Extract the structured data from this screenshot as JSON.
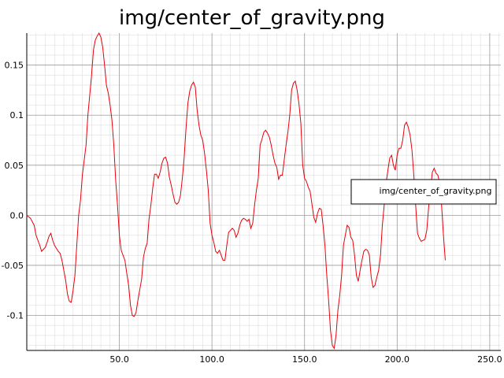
{
  "colors": {
    "series": "#e8000b",
    "grid_major": "#9a9a9a",
    "grid_minor": "#dddddd",
    "axis": "#000000",
    "background": "#ffffff"
  },
  "chart_data": {
    "type": "line",
    "title": "img/center_of_gravity.png",
    "xlabel": "",
    "ylabel": "",
    "xlim": [
      0,
      256
    ],
    "ylim": [
      -0.135,
      0.182
    ],
    "x_ticks": [
      50,
      100,
      150,
      200,
      250
    ],
    "x_tick_labels": [
      "50.0",
      "100.0",
      "150.0",
      "200.0",
      "250.0"
    ],
    "y_ticks": [
      0.15,
      0.1,
      0.05,
      0.0,
      -0.05,
      -0.1
    ],
    "y_tick_labels": [
      "0.15",
      "0.1",
      "0.05",
      "0.0",
      "-0.05",
      "-0.1"
    ],
    "grid": true,
    "legend": "right",
    "series": [
      {
        "name": "img/center_of_gravity.png",
        "points": [
          [
            0,
            0.0
          ],
          [
            2,
            -0.003
          ],
          [
            4,
            -0.01
          ],
          [
            5,
            -0.02
          ],
          [
            7,
            -0.03
          ],
          [
            8,
            -0.036
          ],
          [
            10,
            -0.032
          ],
          [
            11,
            -0.027
          ],
          [
            12,
            -0.021
          ],
          [
            13,
            -0.018
          ],
          [
            14,
            -0.025
          ],
          [
            15,
            -0.03
          ],
          [
            16,
            -0.033
          ],
          [
            17,
            -0.036
          ],
          [
            18,
            -0.038
          ],
          [
            19,
            -0.045
          ],
          [
            20,
            -0.055
          ],
          [
            21,
            -0.065
          ],
          [
            22,
            -0.079
          ],
          [
            23,
            -0.086
          ],
          [
            24,
            -0.087
          ],
          [
            25,
            -0.075
          ],
          [
            26,
            -0.06
          ],
          [
            27,
            -0.03
          ],
          [
            28,
            0.0
          ],
          [
            29,
            0.015
          ],
          [
            30,
            0.04
          ],
          [
            31,
            0.055
          ],
          [
            32,
            0.07
          ],
          [
            33,
            0.1
          ],
          [
            34,
            0.12
          ],
          [
            35,
            0.14
          ],
          [
            36,
            0.165
          ],
          [
            37,
            0.175
          ],
          [
            38,
            0.179
          ],
          [
            39,
            0.182
          ],
          [
            40,
            0.178
          ],
          [
            41,
            0.168
          ],
          [
            42,
            0.15
          ],
          [
            43,
            0.13
          ],
          [
            44,
            0.122
          ],
          [
            45,
            0.11
          ],
          [
            46,
            0.095
          ],
          [
            47,
            0.07
          ],
          [
            48,
            0.035
          ],
          [
            49,
            0.01
          ],
          [
            50,
            -0.02
          ],
          [
            51,
            -0.035
          ],
          [
            53,
            -0.045
          ],
          [
            54,
            -0.058
          ],
          [
            55,
            -0.07
          ],
          [
            56,
            -0.09
          ],
          [
            57,
            -0.1
          ],
          [
            58,
            -0.101
          ],
          [
            59,
            -0.097
          ],
          [
            60,
            -0.085
          ],
          [
            62,
            -0.064
          ],
          [
            63,
            -0.042
          ],
          [
            64,
            -0.033
          ],
          [
            65,
            -0.028
          ],
          [
            66,
            -0.004
          ],
          [
            67,
            0.01
          ],
          [
            68,
            0.027
          ],
          [
            69,
            0.041
          ],
          [
            70,
            0.041
          ],
          [
            71,
            0.037
          ],
          [
            72,
            0.043
          ],
          [
            73,
            0.052
          ],
          [
            74,
            0.057
          ],
          [
            75,
            0.058
          ],
          [
            76,
            0.052
          ],
          [
            77,
            0.038
          ],
          [
            78,
            0.03
          ],
          [
            79,
            0.021
          ],
          [
            80,
            0.013
          ],
          [
            81,
            0.011
          ],
          [
            82,
            0.013
          ],
          [
            83,
            0.02
          ],
          [
            84,
            0.037
          ],
          [
            85,
            0.058
          ],
          [
            86,
            0.087
          ],
          [
            87,
            0.112
          ],
          [
            88,
            0.124
          ],
          [
            89,
            0.13
          ],
          [
            90,
            0.133
          ],
          [
            91,
            0.128
          ],
          [
            92,
            0.105
          ],
          [
            93,
            0.09
          ],
          [
            94,
            0.08
          ],
          [
            95,
            0.075
          ],
          [
            96,
            0.062
          ],
          [
            97,
            0.045
          ],
          [
            98,
            0.025
          ],
          [
            99,
            -0.008
          ],
          [
            100,
            -0.02
          ],
          [
            101,
            -0.027
          ],
          [
            102,
            -0.036
          ],
          [
            103,
            -0.038
          ],
          [
            104,
            -0.035
          ],
          [
            105,
            -0.04
          ],
          [
            106,
            -0.045
          ],
          [
            107,
            -0.045
          ],
          [
            108,
            -0.03
          ],
          [
            109,
            -0.017
          ],
          [
            110,
            -0.015
          ],
          [
            111,
            -0.013
          ],
          [
            112,
            -0.015
          ],
          [
            113,
            -0.022
          ],
          [
            114,
            -0.018
          ],
          [
            115,
            -0.01
          ],
          [
            116,
            -0.005
          ],
          [
            117,
            -0.003
          ],
          [
            118,
            -0.004
          ],
          [
            119,
            -0.006
          ],
          [
            120,
            -0.004
          ],
          [
            121,
            -0.013
          ],
          [
            122,
            -0.008
          ],
          [
            123,
            0.01
          ],
          [
            124,
            0.025
          ],
          [
            125,
            0.037
          ],
          [
            126,
            0.07
          ],
          [
            127,
            0.076
          ],
          [
            128,
            0.083
          ],
          [
            129,
            0.085
          ],
          [
            130,
            0.082
          ],
          [
            131,
            0.078
          ],
          [
            132,
            0.07
          ],
          [
            133,
            0.06
          ],
          [
            134,
            0.052
          ],
          [
            135,
            0.048
          ],
          [
            136,
            0.036
          ],
          [
            137,
            0.04
          ],
          [
            138,
            0.04
          ],
          [
            139,
            0.055
          ],
          [
            140,
            0.07
          ],
          [
            141,
            0.083
          ],
          [
            142,
            0.1
          ],
          [
            143,
            0.125
          ],
          [
            144,
            0.132
          ],
          [
            145,
            0.134
          ],
          [
            146,
            0.125
          ],
          [
            147,
            0.111
          ],
          [
            148,
            0.092
          ],
          [
            149,
            0.05
          ],
          [
            150,
            0.037
          ],
          [
            151,
            0.034
          ],
          [
            152,
            0.028
          ],
          [
            153,
            0.024
          ],
          [
            154,
            0.011
          ],
          [
            155,
            -0.002
          ],
          [
            156,
            -0.007
          ],
          [
            157,
            0.002
          ],
          [
            158,
            0.007
          ],
          [
            159,
            0.006
          ],
          [
            160,
            -0.01
          ],
          [
            161,
            -0.03
          ],
          [
            162,
            -0.06
          ],
          [
            163,
            -0.085
          ],
          [
            164,
            -0.115
          ],
          [
            165,
            -0.13
          ],
          [
            166,
            -0.133
          ],
          [
            167,
            -0.12
          ],
          [
            168,
            -0.095
          ],
          [
            169,
            -0.08
          ],
          [
            170,
            -0.06
          ],
          [
            171,
            -0.03
          ],
          [
            172,
            -0.02
          ],
          [
            173,
            -0.01
          ],
          [
            174,
            -0.012
          ],
          [
            175,
            -0.022
          ],
          [
            176,
            -0.025
          ],
          [
            177,
            -0.04
          ],
          [
            178,
            -0.06
          ],
          [
            179,
            -0.066
          ],
          [
            180,
            -0.055
          ],
          [
            181,
            -0.045
          ],
          [
            182,
            -0.036
          ],
          [
            183,
            -0.034
          ],
          [
            184,
            -0.035
          ],
          [
            185,
            -0.04
          ],
          [
            186,
            -0.062
          ],
          [
            187,
            -0.072
          ],
          [
            188,
            -0.07
          ],
          [
            189,
            -0.062
          ],
          [
            190,
            -0.055
          ],
          [
            191,
            -0.04
          ],
          [
            192,
            -0.01
          ],
          [
            193,
            0.01
          ],
          [
            194,
            0.032
          ],
          [
            195,
            0.045
          ],
          [
            196,
            0.057
          ],
          [
            197,
            0.06
          ],
          [
            198,
            0.05
          ],
          [
            199,
            0.045
          ],
          [
            200,
            0.06
          ],
          [
            201,
            0.067
          ],
          [
            202,
            0.067
          ],
          [
            203,
            0.075
          ],
          [
            204,
            0.09
          ],
          [
            205,
            0.093
          ],
          [
            206,
            0.088
          ],
          [
            207,
            0.08
          ],
          [
            208,
            0.065
          ],
          [
            209,
            0.04
          ],
          [
            210,
            0.01
          ],
          [
            211,
            -0.018
          ],
          [
            212,
            -0.023
          ],
          [
            213,
            -0.026
          ],
          [
            214,
            -0.025
          ],
          [
            215,
            -0.024
          ],
          [
            216,
            -0.015
          ],
          [
            217,
            0.008
          ],
          [
            218,
            0.025
          ],
          [
            219,
            0.043
          ],
          [
            220,
            0.047
          ],
          [
            221,
            0.042
          ],
          [
            222,
            0.04
          ],
          [
            223,
            0.032
          ],
          [
            224,
            0.01
          ],
          [
            225,
            -0.02
          ],
          [
            226,
            -0.045
          ]
        ]
      }
    ]
  }
}
